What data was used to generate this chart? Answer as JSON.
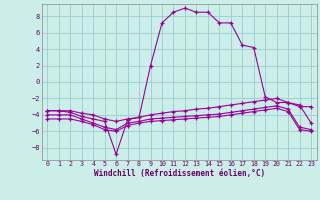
{
  "xlabel": "Windchill (Refroidissement éolien,°C)",
  "xlim": [
    -0.5,
    23.5
  ],
  "ylim": [
    -9.5,
    9.5
  ],
  "xticks": [
    0,
    1,
    2,
    3,
    4,
    5,
    6,
    7,
    8,
    9,
    10,
    11,
    12,
    13,
    14,
    15,
    16,
    17,
    18,
    19,
    20,
    21,
    22,
    23
  ],
  "yticks": [
    -8,
    -6,
    -4,
    -2,
    0,
    2,
    4,
    6,
    8
  ],
  "bg_color": "#cceee8",
  "line_color": "#990099",
  "grid_color": "#99cccc",
  "lines": [
    {
      "x": [
        0,
        1,
        2,
        3,
        4,
        5,
        6,
        7,
        8,
        9,
        10,
        11,
        12,
        13,
        14,
        15,
        16,
        17,
        18,
        19,
        20,
        21,
        22,
        23
      ],
      "y": [
        -3.5,
        -3.5,
        -3.7,
        -4.2,
        -4.5,
        -4.8,
        -8.8,
        -4.6,
        -4.3,
        2.0,
        7.2,
        8.5,
        9.0,
        8.5,
        8.5,
        7.2,
        7.2,
        4.5,
        4.2,
        -1.8,
        -2.5,
        -2.5,
        -3.0,
        -3.0
      ]
    },
    {
      "x": [
        0,
        1,
        2,
        3,
        4,
        5,
        6,
        7,
        8,
        9,
        10,
        11,
        12,
        13,
        14,
        15,
        16,
        17,
        18,
        19,
        20,
        21,
        22,
        23
      ],
      "y": [
        -3.5,
        -3.5,
        -3.5,
        -3.8,
        -4.0,
        -4.5,
        -4.8,
        -4.5,
        -4.3,
        -4.0,
        -3.8,
        -3.6,
        -3.5,
        -3.3,
        -3.2,
        -3.0,
        -2.8,
        -2.6,
        -2.4,
        -2.2,
        -2.0,
        -2.5,
        -2.8,
        -5.0
      ]
    },
    {
      "x": [
        0,
        1,
        2,
        3,
        4,
        5,
        6,
        7,
        8,
        9,
        10,
        11,
        12,
        13,
        14,
        15,
        16,
        17,
        18,
        19,
        20,
        21,
        22,
        23
      ],
      "y": [
        -4.0,
        -4.0,
        -4.0,
        -4.5,
        -5.0,
        -5.5,
        -5.8,
        -5.0,
        -4.8,
        -4.5,
        -4.4,
        -4.3,
        -4.2,
        -4.1,
        -4.0,
        -3.9,
        -3.7,
        -3.5,
        -3.3,
        -3.1,
        -2.9,
        -3.3,
        -5.5,
        -5.8
      ]
    },
    {
      "x": [
        0,
        1,
        2,
        3,
        4,
        5,
        6,
        7,
        8,
        9,
        10,
        11,
        12,
        13,
        14,
        15,
        16,
        17,
        18,
        19,
        20,
        21,
        22,
        23
      ],
      "y": [
        -4.5,
        -4.5,
        -4.5,
        -4.8,
        -5.2,
        -5.8,
        -6.0,
        -5.3,
        -5.0,
        -4.8,
        -4.7,
        -4.6,
        -4.5,
        -4.4,
        -4.3,
        -4.2,
        -4.0,
        -3.8,
        -3.6,
        -3.4,
        -3.2,
        -3.6,
        -5.8,
        -6.0
      ]
    }
  ]
}
